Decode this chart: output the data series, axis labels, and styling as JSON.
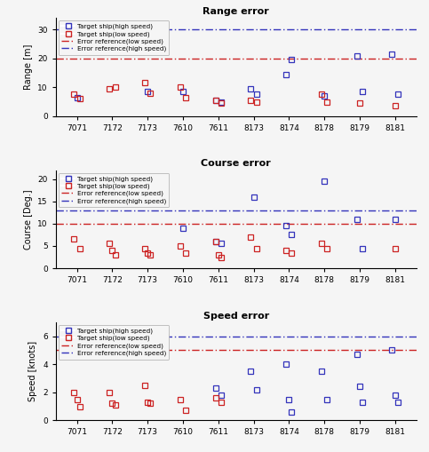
{
  "categories": [
    "7071",
    "7172",
    "7173",
    "7610",
    "7611",
    "8173",
    "8174",
    "8178",
    "8179",
    "8181"
  ],
  "range": {
    "high_speed": [
      6.5,
      null,
      8.5,
      8.5,
      5.5,
      9.5,
      14.5,
      7.0,
      21.0,
      21.5
    ],
    "high_speed2": [
      null,
      null,
      null,
      null,
      5.0,
      7.5,
      19.5,
      null,
      8.5,
      7.5
    ],
    "low_speed": [
      7.5,
      9.5,
      11.5,
      10.0,
      5.5,
      5.5,
      null,
      7.5,
      4.5,
      null
    ],
    "low_speed2": [
      6.0,
      10.0,
      8.0,
      6.5,
      4.5,
      5.0,
      null,
      5.0,
      null,
      3.5
    ],
    "ref_low": 20,
    "ref_high": 30,
    "ylim": [
      0,
      34
    ],
    "yticks": [
      0,
      10,
      20,
      30
    ],
    "ylabel": "Range [m]"
  },
  "course": {
    "high_speed": [
      null,
      null,
      null,
      9.0,
      6.0,
      16.0,
      9.5,
      19.5,
      11.0,
      11.0
    ],
    "high_speed2": [
      null,
      null,
      null,
      null,
      5.5,
      null,
      7.5,
      null,
      4.5,
      null
    ],
    "low_speed": [
      6.5,
      5.5,
      4.5,
      5.0,
      6.0,
      7.0,
      4.0,
      5.5,
      null,
      4.5
    ],
    "low_speed2": [
      4.5,
      4.0,
      3.5,
      3.5,
      3.0,
      4.5,
      3.5,
      4.5,
      null,
      null
    ],
    "low_speed3": [
      null,
      3.0,
      3.0,
      null,
      2.5,
      null,
      null,
      null,
      null,
      null
    ],
    "ref_low": 10,
    "ref_high": 13,
    "ylim": [
      0,
      22
    ],
    "yticks": [
      0,
      5,
      10,
      15,
      20
    ],
    "ylabel": "Course [Deg.]"
  },
  "speed": {
    "high_speed": [
      null,
      null,
      null,
      null,
      2.3,
      3.5,
      4.0,
      3.5,
      4.7,
      5.0
    ],
    "high_speed2": [
      null,
      null,
      null,
      null,
      1.8,
      2.2,
      1.5,
      1.5,
      2.4,
      1.8
    ],
    "high_speed3": [
      null,
      null,
      null,
      null,
      null,
      null,
      0.6,
      null,
      1.3,
      1.3
    ],
    "low_speed": [
      2.0,
      2.0,
      2.5,
      1.5,
      1.6,
      null,
      null,
      null,
      null,
      null
    ],
    "low_speed2": [
      1.5,
      1.2,
      1.3,
      null,
      1.3,
      null,
      null,
      null,
      null,
      null
    ],
    "low_speed3": [
      1.0,
      1.1,
      1.2,
      0.7,
      null,
      null,
      null,
      null,
      null,
      null
    ],
    "ref_low": 5,
    "ref_high": 6,
    "ylim": [
      0,
      7
    ],
    "yticks": [
      0,
      2,
      4,
      6
    ],
    "ylabel": "Speed [knots]"
  },
  "color_high": "#3333bb",
  "color_low": "#cc2222",
  "marker_size": 4.5,
  "title_range": "Range error",
  "title_course": "Course error",
  "title_speed": "Speed error",
  "legend_high": "Target ship(high speed)",
  "legend_low": "Target ship(low speed)",
  "legend_ref_low": "Error reference(low speed)",
  "legend_ref_high": "Error reference(high speed)"
}
